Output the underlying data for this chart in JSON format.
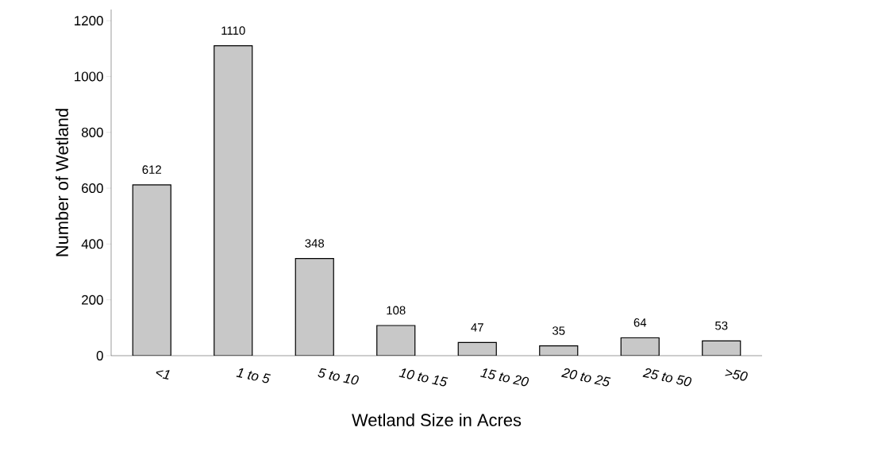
{
  "chart_data": {
    "type": "bar",
    "xlabel": "Wetland Size in Acres",
    "ylabel": "Number of Wetland",
    "categories": [
      "<1",
      "1 to 5",
      "5 to 10",
      "10 to 15",
      "15 to 20",
      "20 to 25",
      "25 to 50",
      ">50"
    ],
    "values": [
      612,
      1110,
      348,
      108,
      47,
      35,
      64,
      53
    ],
    "color": "#c8c8c8",
    "data_labels": true,
    "ylim": [
      0,
      1240
    ],
    "yticks": [
      0,
      200,
      400,
      600,
      800,
      1000,
      1200
    ],
    "grid": false
  }
}
